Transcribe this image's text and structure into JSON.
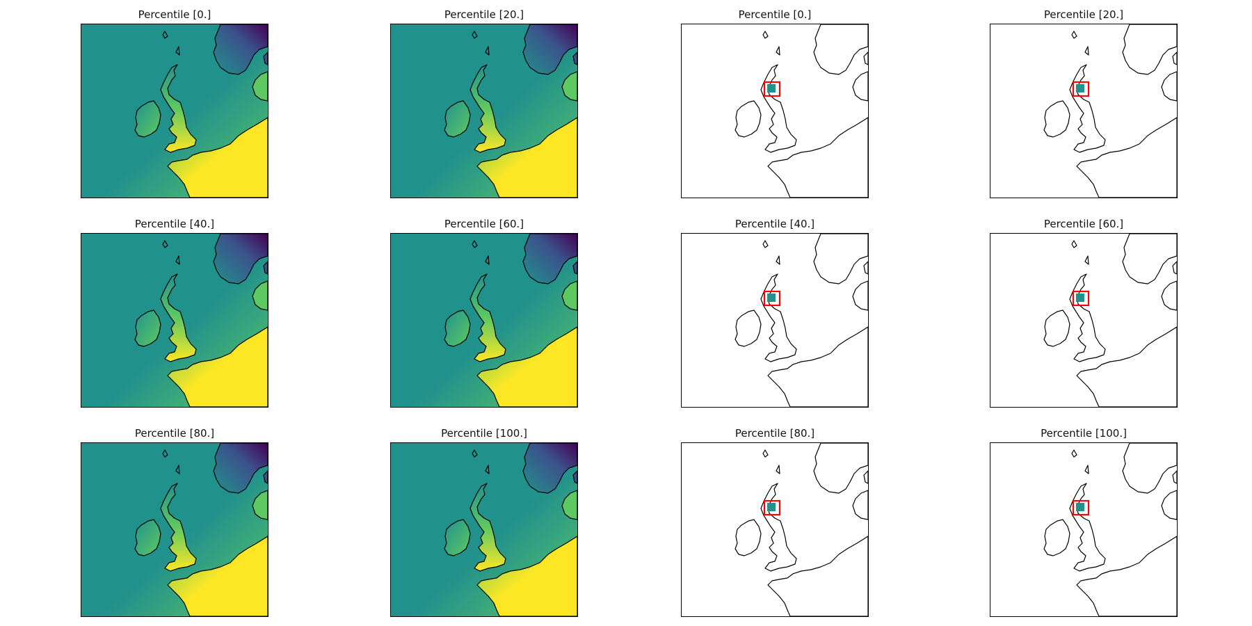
{
  "figure": {
    "colormap": [
      "#440154",
      "#3b528b",
      "#21918c",
      "#5ec962",
      "#fde725"
    ],
    "coastline_color": "#000000",
    "highlight_box_color": "#ff0000",
    "highlight_fill_color": "#21918c",
    "panels": [
      {
        "title": "Percentile [0.]",
        "kind": "field",
        "percentile": 0
      },
      {
        "title": "Percentile [20.]",
        "kind": "field",
        "percentile": 20
      },
      {
        "title": "Percentile [0.]",
        "kind": "region",
        "percentile": 0
      },
      {
        "title": "Percentile [20.]",
        "kind": "region",
        "percentile": 20
      },
      {
        "title": "Percentile [40.]",
        "kind": "field",
        "percentile": 40
      },
      {
        "title": "Percentile [60.]",
        "kind": "field",
        "percentile": 60
      },
      {
        "title": "Percentile [40.]",
        "kind": "region",
        "percentile": 40
      },
      {
        "title": "Percentile [60.]",
        "kind": "region",
        "percentile": 60
      },
      {
        "title": "Percentile [80.]",
        "kind": "field",
        "percentile": 80
      },
      {
        "title": "Percentile [100.]",
        "kind": "field",
        "percentile": 100
      },
      {
        "title": "Percentile [80.]",
        "kind": "region",
        "percentile": 80
      },
      {
        "title": "Percentile [100.]",
        "kind": "region",
        "percentile": 100
      }
    ]
  }
}
